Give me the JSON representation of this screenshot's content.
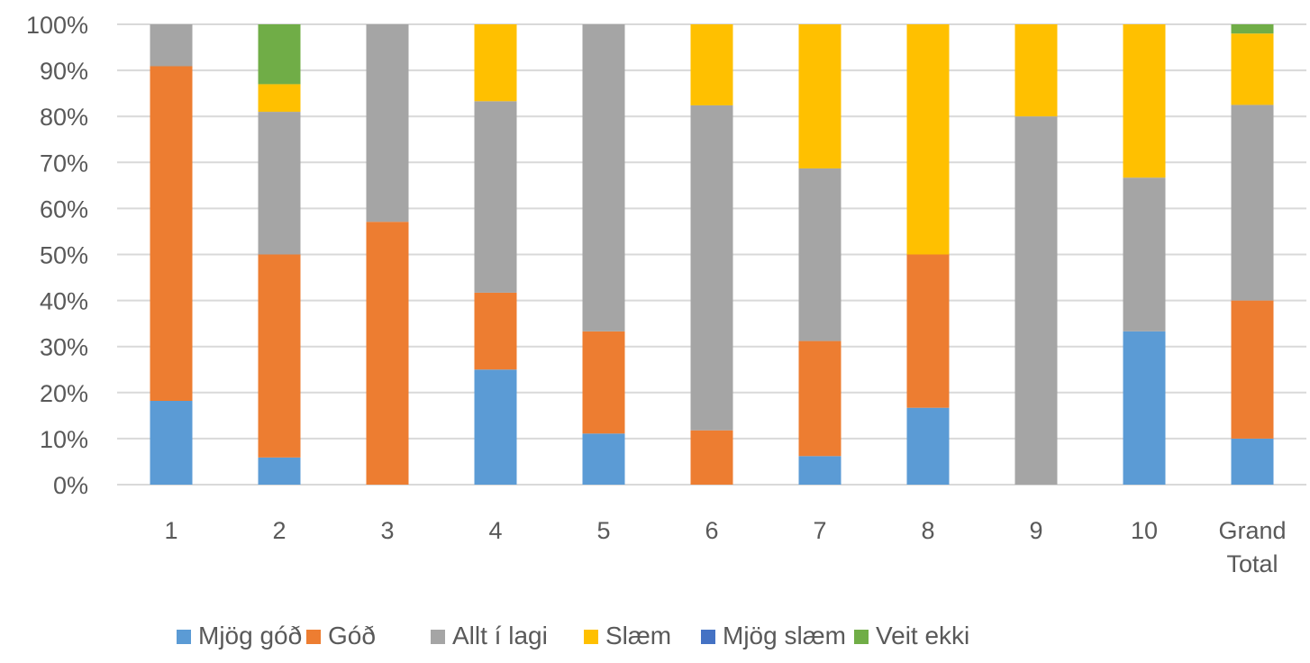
{
  "chart_data": {
    "type": "bar",
    "stacked": true,
    "percent": true,
    "categories": [
      "1",
      "2",
      "3",
      "4",
      "5",
      "6",
      "7",
      "8",
      "9",
      "10",
      "Grand Total"
    ],
    "series": [
      {
        "name": "Mjög góð",
        "color": "#5b9bd5",
        "values": [
          18.2,
          5.9,
          0,
          25.0,
          11.1,
          0,
          6.2,
          16.7,
          0,
          33.3,
          10.0
        ]
      },
      {
        "name": "Góð",
        "color": "#ed7d31",
        "values": [
          72.7,
          44.1,
          57.1,
          16.7,
          22.2,
          11.8,
          25.0,
          33.3,
          0,
          0,
          30.0
        ]
      },
      {
        "name": "Allt í lagi",
        "color": "#a5a5a5",
        "values": [
          9.1,
          31.0,
          42.9,
          41.6,
          66.7,
          70.6,
          37.5,
          0,
          80.0,
          33.4,
          42.5
        ]
      },
      {
        "name": "Slæm",
        "color": "#ffc000",
        "values": [
          0,
          6.0,
          0,
          16.7,
          0,
          17.6,
          31.3,
          50.0,
          20.0,
          33.3,
          15.5
        ]
      },
      {
        "name": "Mjög slæm",
        "color": "#4472c4",
        "values": [
          0,
          0,
          0,
          0,
          0,
          0,
          0,
          0,
          0,
          0,
          0
        ]
      },
      {
        "name": "Veit ekki",
        "color": "#70ad47",
        "values": [
          0,
          13.0,
          0,
          0,
          0,
          0,
          0,
          0,
          0,
          0,
          2.0
        ]
      }
    ],
    "y_ticks": [
      "0%",
      "10%",
      "20%",
      "30%",
      "40%",
      "50%",
      "60%",
      "70%",
      "80%",
      "90%",
      "100%"
    ],
    "ylim": [
      0,
      100
    ],
    "grid": true,
    "legend_position": "bottom",
    "title": "",
    "xlabel": "",
    "ylabel": ""
  }
}
